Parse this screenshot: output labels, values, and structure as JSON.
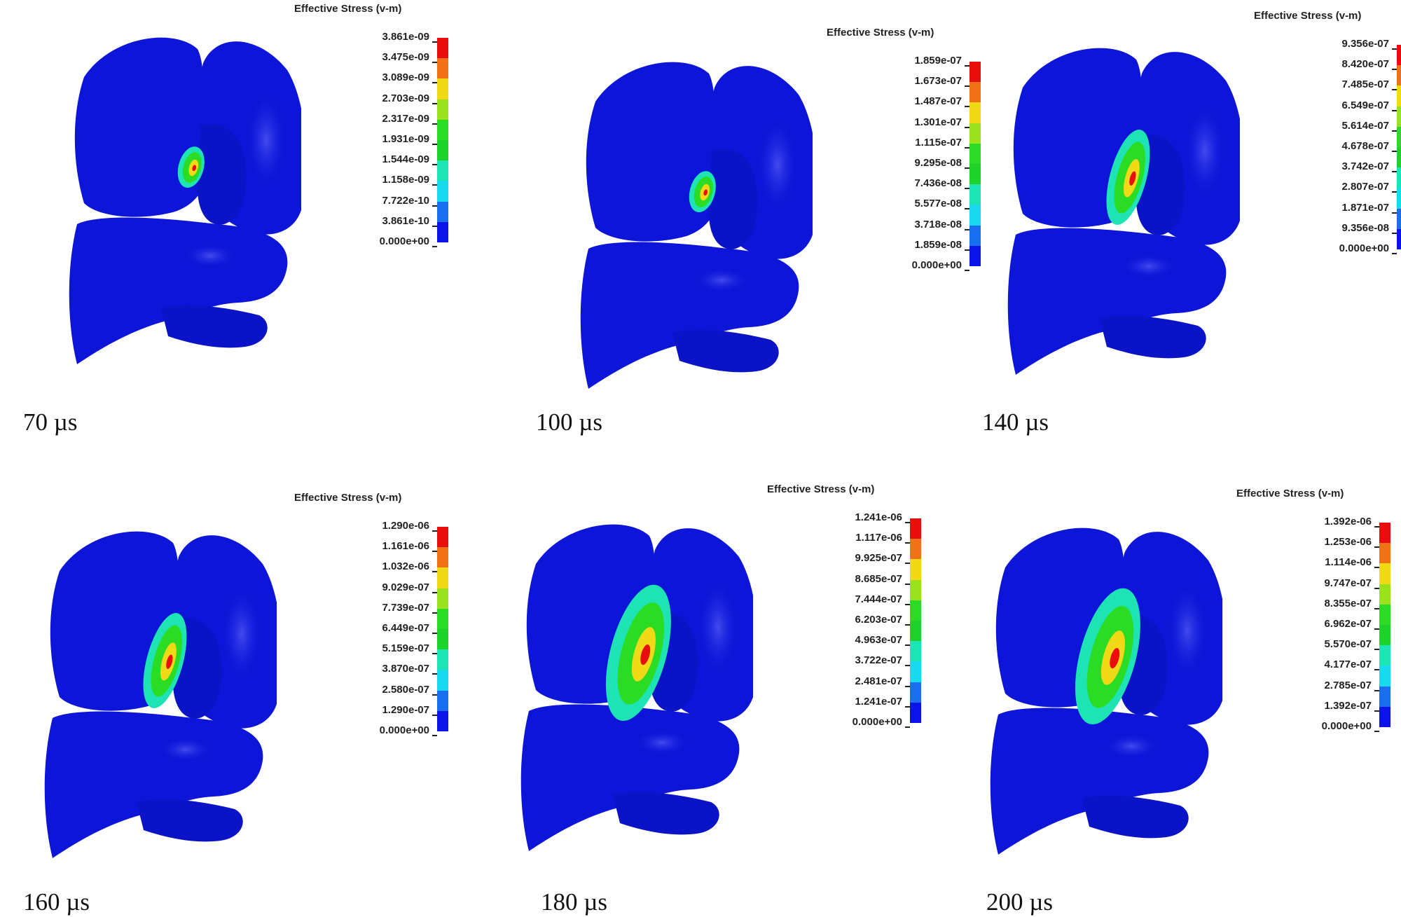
{
  "figure": {
    "rows": 2,
    "cols": 3,
    "legend_title": "Effective Stress (v-m)",
    "colormap": [
      "#0a14e6",
      "#1a6ef0",
      "#19d9ee",
      "#1ee3b4",
      "#1ed22c",
      "#2bdc25",
      "#9be21e",
      "#f0d917",
      "#f07214",
      "#e80e0e"
    ]
  },
  "panels": [
    {
      "time_label": "70 µs",
      "legend_ticks": [
        "3.861e-09",
        "3.475e-09",
        "3.089e-09",
        "2.703e-09",
        "2.317e-09",
        "1.931e-09",
        "1.544e-09",
        "1.158e-09",
        "7.722e-10",
        "3.861e-10",
        "0.000e+00"
      ],
      "hotspot": "small"
    },
    {
      "time_label": "100 µs",
      "legend_ticks": [
        "1.859e-07",
        "1.673e-07",
        "1.487e-07",
        "1.301e-07",
        "1.115e-07",
        "9.295e-08",
        "7.436e-08",
        "5.577e-08",
        "3.718e-08",
        "1.859e-08",
        "0.000e+00"
      ],
      "hotspot": "small"
    },
    {
      "time_label": "140 µs",
      "legend_ticks": [
        "9.356e-07",
        "8.420e-07",
        "7.485e-07",
        "6.549e-07",
        "5.614e-07",
        "4.678e-07",
        "3.742e-07",
        "2.807e-07",
        "1.871e-07",
        "9.356e-08",
        "0.000e+00"
      ],
      "hotspot": "medium"
    },
    {
      "time_label": "160 µs",
      "legend_ticks": [
        "1.290e-06",
        "1.161e-06",
        "1.032e-06",
        "9.029e-07",
        "7.739e-07",
        "6.449e-07",
        "5.159e-07",
        "3.870e-07",
        "2.580e-07",
        "1.290e-07",
        "0.000e+00"
      ],
      "hotspot": "medium"
    },
    {
      "time_label": "180 µs",
      "legend_ticks": [
        "1.241e-06",
        "1.117e-06",
        "9.925e-07",
        "8.685e-07",
        "7.444e-07",
        "6.203e-07",
        "4.963e-07",
        "3.722e-07",
        "2.481e-07",
        "1.241e-07",
        "0.000e+00"
      ],
      "hotspot": "large"
    },
    {
      "time_label": "200 µs",
      "legend_ticks": [
        "1.392e-06",
        "1.253e-06",
        "1.114e-06",
        "9.747e-07",
        "8.355e-07",
        "6.962e-07",
        "5.570e-07",
        "4.177e-07",
        "2.785e-07",
        "1.392e-07",
        "0.000e+00"
      ],
      "hotspot": "large"
    }
  ]
}
